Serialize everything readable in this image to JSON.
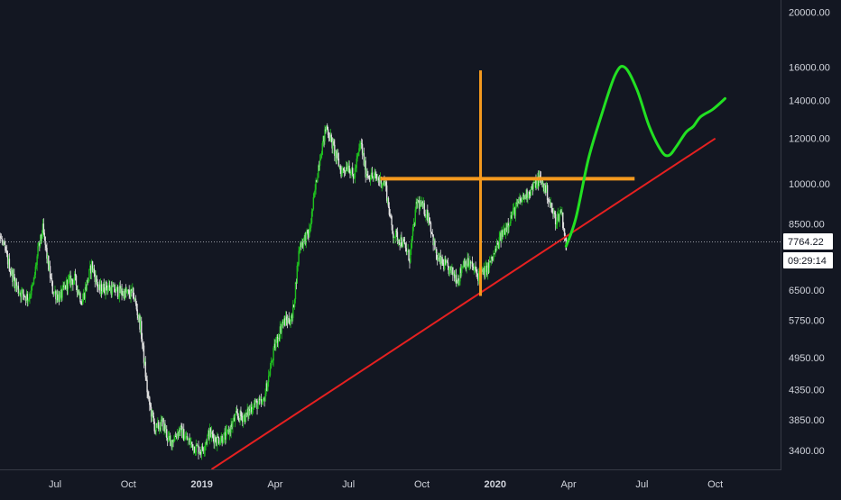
{
  "chart_data": {
    "type": "candlestick",
    "y_scale": "log",
    "ylim": [
      3150,
      21000
    ],
    "colors": {
      "background": "#131722",
      "up": "#1fbf1f",
      "down": "#e0e0e0",
      "support_line": "#e52020",
      "resistance_level": "#f59a1f",
      "projection": "#22e022",
      "axis_text": "#d1d4dc",
      "price_label_bg": "#ffffff"
    },
    "y_tick_labels": [
      "20000.00",
      "16000.00",
      "14000.00",
      "12000.00",
      "10000.00",
      "8500.00",
      "6500.00",
      "5750.00",
      "4950.00",
      "4350.00",
      "3850.00",
      "3400.00"
    ],
    "x_tick_labels": [
      {
        "label": "Jul",
        "bold": false
      },
      {
        "label": "Oct",
        "bold": false
      },
      {
        "label": "2019",
        "bold": true
      },
      {
        "label": "Apr",
        "bold": false
      },
      {
        "label": "Jul",
        "bold": false
      },
      {
        "label": "Oct",
        "bold": false
      },
      {
        "label": "2020",
        "bold": true
      },
      {
        "label": "Apr",
        "bold": false
      },
      {
        "label": "Jul",
        "bold": false
      },
      {
        "label": "Oct",
        "bold": false
      }
    ],
    "x_tick_months": [
      0,
      3,
      6,
      9,
      12,
      15,
      18,
      21,
      24,
      27
    ],
    "price_anchors": [
      [
        -3.0,
        9800
      ],
      [
        -2.7,
        9500
      ],
      [
        -2.3,
        8200
      ],
      [
        -2.0,
        7500
      ],
      [
        -1.8,
        7000
      ],
      [
        -1.5,
        6500
      ],
      [
        -1.1,
        6300
      ],
      [
        -0.9,
        6600
      ],
      [
        -0.7,
        7600
      ],
      [
        -0.5,
        8300
      ],
      [
        -0.3,
        7300
      ],
      [
        -0.1,
        6500
      ],
      [
        0.2,
        6300
      ],
      [
        0.5,
        6700
      ],
      [
        0.8,
        6800
      ],
      [
        1.1,
        6200
      ],
      [
        1.5,
        7200
      ],
      [
        1.8,
        6500
      ],
      [
        2.1,
        6600
      ],
      [
        2.4,
        6500
      ],
      [
        2.7,
        6450
      ],
      [
        3.0,
        6400
      ],
      [
        3.2,
        6400
      ],
      [
        3.5,
        5600
      ],
      [
        3.8,
        4200
      ],
      [
        4.1,
        3700
      ],
      [
        4.4,
        3800
      ],
      [
        4.7,
        3500
      ],
      [
        5.1,
        3700
      ],
      [
        5.4,
        3550
      ],
      [
        5.7,
        3450
      ],
      [
        6.0,
        3400
      ],
      [
        6.3,
        3650
      ],
      [
        6.6,
        3550
      ],
      [
        7.0,
        3600
      ],
      [
        7.4,
        3900
      ],
      [
        7.8,
        3900
      ],
      [
        8.1,
        4100
      ],
      [
        8.5,
        4100
      ],
      [
        9.0,
        5200
      ],
      [
        9.3,
        5700
      ],
      [
        9.7,
        5800
      ],
      [
        10.0,
        7800
      ],
      [
        10.4,
        8200
      ],
      [
        10.8,
        11000
      ],
      [
        11.1,
        12600
      ],
      [
        11.4,
        11500
      ],
      [
        11.7,
        10500
      ],
      [
        12.0,
        10800
      ],
      [
        12.2,
        10200
      ],
      [
        12.5,
        11800
      ],
      [
        12.7,
        10500
      ],
      [
        12.9,
        10300
      ],
      [
        13.2,
        10200
      ],
      [
        13.5,
        10000
      ],
      [
        13.8,
        8200
      ],
      [
        14.2,
        7900
      ],
      [
        14.5,
        7400
      ],
      [
        14.8,
        9300
      ],
      [
        15.1,
        9000
      ],
      [
        15.3,
        8700
      ],
      [
        15.6,
        7400
      ],
      [
        15.9,
        7200
      ],
      [
        16.2,
        7000
      ],
      [
        16.5,
        6800
      ],
      [
        16.7,
        7300
      ],
      [
        17.0,
        7200
      ],
      [
        17.3,
        6900
      ],
      [
        17.6,
        7000
      ],
      [
        17.9,
        7400
      ],
      [
        18.2,
        8000
      ],
      [
        18.5,
        8500
      ],
      [
        18.8,
        9000
      ],
      [
        19.1,
        9400
      ],
      [
        19.5,
        9800
      ],
      [
        19.8,
        10200
      ],
      [
        20.1,
        9700
      ],
      [
        20.3,
        9000
      ],
      [
        20.5,
        8600
      ],
      [
        20.7,
        9000
      ],
      [
        20.9,
        7764
      ]
    ],
    "projection_points": [
      [
        20.9,
        7764
      ],
      [
        21.3,
        8700
      ],
      [
        21.8,
        11000
      ],
      [
        22.3,
        13000
      ],
      [
        22.9,
        15500
      ],
      [
        23.3,
        16000
      ],
      [
        23.8,
        14600
      ],
      [
        24.3,
        12600
      ],
      [
        24.8,
        11400
      ],
      [
        25.1,
        11200
      ],
      [
        25.4,
        11600
      ],
      [
        25.8,
        12300
      ],
      [
        26.1,
        12600
      ],
      [
        26.4,
        13100
      ],
      [
        26.9,
        13500
      ],
      [
        27.4,
        14100
      ]
    ],
    "support_line": {
      "from": [
        6.4,
        3150
      ],
      "to": [
        27.0,
        12000
      ]
    },
    "resistance_horizontal": {
      "from": [
        13.3,
        10200
      ],
      "to": [
        23.7,
        10200
      ]
    },
    "resistance_vertical": {
      "month": 17.4,
      "from": 6350,
      "to": 15800
    },
    "last_price": "7764.22",
    "countdown": "09:29:14"
  }
}
